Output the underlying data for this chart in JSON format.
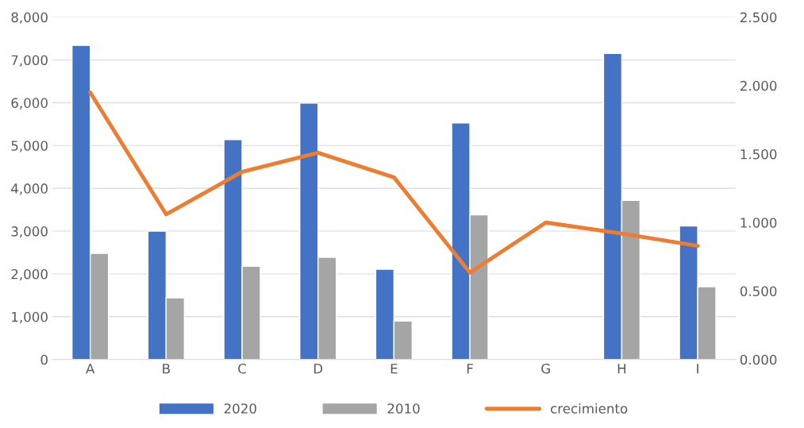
{
  "chart_data": {
    "type": "bar",
    "categories": [
      "A",
      "B",
      "C",
      "D",
      "E",
      "F",
      "G",
      "H",
      "I"
    ],
    "series": [
      {
        "name": "2020",
        "color": "#4472c4",
        "values": [
          7340,
          3000,
          5140,
          5990,
          2110,
          5530,
          null,
          7150,
          3120
        ]
      },
      {
        "name": "2010",
        "color": "#a5a5a5",
        "values": [
          2480,
          1440,
          2180,
          2390,
          900,
          3380,
          null,
          3720,
          1700
        ]
      },
      {
        "name": "crecimiento",
        "type": "line",
        "axis": "y2",
        "color": "#ed7d31",
        "values": [
          1.95,
          1.06,
          1.37,
          1.51,
          1.33,
          0.635,
          1.0,
          0.92,
          0.83
        ]
      }
    ],
    "ylim": [
      0,
      8000
    ],
    "yticks": [
      {
        "value": 0,
        "label": "0"
      },
      {
        "value": 1000,
        "label": "1,000"
      },
      {
        "value": 2000,
        "label": "2,000"
      },
      {
        "value": 3000,
        "label": "3,000"
      },
      {
        "value": 4000,
        "label": "4,000"
      },
      {
        "value": 5000,
        "label": "5,000"
      },
      {
        "value": 6000,
        "label": "6,000"
      },
      {
        "value": 7000,
        "label": "7,000"
      },
      {
        "value": 8000,
        "label": "8,000"
      }
    ],
    "y2lim": [
      0,
      2.5
    ],
    "y2ticks": [
      {
        "value": 0,
        "label": "0.000"
      },
      {
        "value": 0.5,
        "label": "0.500"
      },
      {
        "value": 1,
        "label": "1.000"
      },
      {
        "value": 1.5,
        "label": "1.500"
      },
      {
        "value": 2,
        "label": "2.000"
      },
      {
        "value": 2.5,
        "label": "2.500"
      }
    ],
    "grid": "y",
    "legend": "bottom"
  }
}
